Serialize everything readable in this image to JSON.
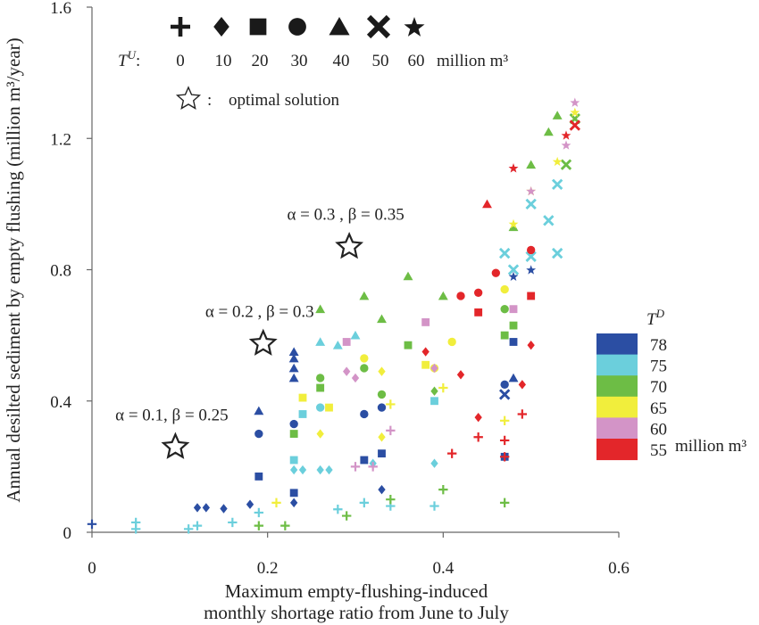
{
  "chart_data": {
    "type": "scatter",
    "title": "",
    "xlabel_line1": "Maximum empty-flushing-induced",
    "xlabel_line2": "monthly shortage ratio from June to July",
    "ylabel": "Annual desilted sediment by empty flushing (million m³/year)",
    "xlim": [
      0,
      0.6
    ],
    "ylim": [
      0,
      1.6
    ],
    "x_ticks": [
      {
        "value": 0,
        "label": "0"
      },
      {
        "value": 0.2,
        "label": "0.2"
      },
      {
        "value": 0.4,
        "label": "0.4"
      },
      {
        "value": 0.6,
        "label": "0.6"
      }
    ],
    "y_ticks": [
      {
        "value": 0,
        "label": "0"
      },
      {
        "value": 0.4,
        "label": "0.4"
      },
      {
        "value": 0.8,
        "label": "0.8"
      },
      {
        "value": 1.2,
        "label": "1.2"
      },
      {
        "value": 1.6,
        "label": "1.6"
      }
    ],
    "grid": false,
    "marker_legend": {
      "title": "T",
      "title_sup": "U",
      "colon": ":",
      "unit": "million m³",
      "items": [
        {
          "marker": "plus",
          "label": "0"
        },
        {
          "marker": "diamond",
          "label": "10"
        },
        {
          "marker": "square",
          "label": "20"
        },
        {
          "marker": "circle",
          "label": "30"
        },
        {
          "marker": "triangle",
          "label": "40"
        },
        {
          "marker": "x",
          "label": "50"
        },
        {
          "marker": "star",
          "label": "60"
        }
      ],
      "optimal_label": "optimal solution",
      "optimal_colon": ":"
    },
    "color_legend": {
      "title": "T",
      "title_sup": "D",
      "unit": "million m³",
      "items": [
        {
          "label": "78",
          "color": "#2b4ea3"
        },
        {
          "label": "75",
          "color": "#6bcfdc"
        },
        {
          "label": "70",
          "color": "#6dbd45"
        },
        {
          "label": "65",
          "color": "#f1ee3c"
        },
        {
          "label": "60",
          "color": "#d394c7"
        },
        {
          "label": "55",
          "color": "#e3262a"
        }
      ]
    },
    "optimal_solutions": [
      {
        "label": "α = 0.1, β = 0.25",
        "x": 0.095,
        "y": 0.26
      },
      {
        "label": "α = 0.2 , β = 0.3",
        "x": 0.195,
        "y": 0.575
      },
      {
        "label": "α = 0.3 , β = 0.35",
        "x": 0.293,
        "y": 0.87
      }
    ],
    "series": [
      {
        "td": 78,
        "color": "#2b4ea3",
        "points": [
          {
            "x": 0.0,
            "y": 0.025,
            "m": "plus"
          },
          {
            "x": 0.12,
            "y": 0.075,
            "m": "diamond"
          },
          {
            "x": 0.13,
            "y": 0.075,
            "m": "diamond"
          },
          {
            "x": 0.15,
            "y": 0.072,
            "m": "diamond"
          },
          {
            "x": 0.18,
            "y": 0.085,
            "m": "diamond"
          },
          {
            "x": 0.19,
            "y": 0.17,
            "m": "square"
          },
          {
            "x": 0.19,
            "y": 0.3,
            "m": "circle"
          },
          {
            "x": 0.19,
            "y": 0.37,
            "m": "triangle"
          },
          {
            "x": 0.23,
            "y": 0.47,
            "m": "triangle"
          },
          {
            "x": 0.23,
            "y": 0.5,
            "m": "triangle"
          },
          {
            "x": 0.23,
            "y": 0.53,
            "m": "triangle"
          },
          {
            "x": 0.23,
            "y": 0.55,
            "m": "triangle"
          },
          {
            "x": 0.23,
            "y": 0.33,
            "m": "circle"
          },
          {
            "x": 0.23,
            "y": 0.12,
            "m": "square"
          },
          {
            "x": 0.23,
            "y": 0.09,
            "m": "diamond"
          },
          {
            "x": 0.31,
            "y": 0.36,
            "m": "circle"
          },
          {
            "x": 0.31,
            "y": 0.22,
            "m": "square"
          },
          {
            "x": 0.33,
            "y": 0.24,
            "m": "square"
          },
          {
            "x": 0.33,
            "y": 0.38,
            "m": "circle"
          },
          {
            "x": 0.33,
            "y": 0.13,
            "m": "diamond"
          },
          {
            "x": 0.47,
            "y": 0.23,
            "m": "square"
          },
          {
            "x": 0.47,
            "y": 0.45,
            "m": "circle"
          },
          {
            "x": 0.47,
            "y": 0.42,
            "m": "x"
          },
          {
            "x": 0.48,
            "y": 0.47,
            "m": "triangle"
          },
          {
            "x": 0.48,
            "y": 0.58,
            "m": "square"
          },
          {
            "x": 0.48,
            "y": 0.78,
            "m": "star"
          },
          {
            "x": 0.5,
            "y": 0.8,
            "m": "star"
          }
        ]
      },
      {
        "td": 75,
        "color": "#6bcfdc",
        "points": [
          {
            "x": 0.05,
            "y": 0.01,
            "m": "plus"
          },
          {
            "x": 0.05,
            "y": 0.03,
            "m": "plus"
          },
          {
            "x": 0.11,
            "y": 0.01,
            "m": "plus"
          },
          {
            "x": 0.12,
            "y": 0.02,
            "m": "plus"
          },
          {
            "x": 0.16,
            "y": 0.03,
            "m": "plus"
          },
          {
            "x": 0.19,
            "y": 0.06,
            "m": "plus"
          },
          {
            "x": 0.23,
            "y": 0.22,
            "m": "square"
          },
          {
            "x": 0.23,
            "y": 0.19,
            "m": "diamond"
          },
          {
            "x": 0.24,
            "y": 0.36,
            "m": "square"
          },
          {
            "x": 0.24,
            "y": 0.19,
            "m": "diamond"
          },
          {
            "x": 0.26,
            "y": 0.19,
            "m": "diamond"
          },
          {
            "x": 0.26,
            "y": 0.38,
            "m": "circle"
          },
          {
            "x": 0.27,
            "y": 0.19,
            "m": "diamond"
          },
          {
            "x": 0.26,
            "y": 0.58,
            "m": "triangle"
          },
          {
            "x": 0.28,
            "y": 0.57,
            "m": "triangle"
          },
          {
            "x": 0.3,
            "y": 0.6,
            "m": "triangle"
          },
          {
            "x": 0.28,
            "y": 0.07,
            "m": "plus"
          },
          {
            "x": 0.31,
            "y": 0.09,
            "m": "plus"
          },
          {
            "x": 0.32,
            "y": 0.21,
            "m": "diamond"
          },
          {
            "x": 0.34,
            "y": 0.08,
            "m": "plus"
          },
          {
            "x": 0.39,
            "y": 0.08,
            "m": "plus"
          },
          {
            "x": 0.39,
            "y": 0.21,
            "m": "diamond"
          },
          {
            "x": 0.39,
            "y": 0.4,
            "m": "square"
          },
          {
            "x": 0.47,
            "y": 0.85,
            "m": "x"
          },
          {
            "x": 0.48,
            "y": 0.8,
            "m": "x"
          },
          {
            "x": 0.5,
            "y": 0.84,
            "m": "x"
          },
          {
            "x": 0.52,
            "y": 0.95,
            "m": "x"
          },
          {
            "x": 0.53,
            "y": 0.85,
            "m": "x"
          },
          {
            "x": 0.53,
            "y": 1.06,
            "m": "x"
          },
          {
            "x": 0.5,
            "y": 1.0,
            "m": "x"
          }
        ]
      },
      {
        "td": 70,
        "color": "#6dbd45",
        "points": [
          {
            "x": 0.19,
            "y": 0.02,
            "m": "plus"
          },
          {
            "x": 0.22,
            "y": 0.02,
            "m": "plus"
          },
          {
            "x": 0.23,
            "y": 0.3,
            "m": "square"
          },
          {
            "x": 0.26,
            "y": 0.47,
            "m": "circle"
          },
          {
            "x": 0.26,
            "y": 0.44,
            "m": "square"
          },
          {
            "x": 0.26,
            "y": 0.68,
            "m": "triangle"
          },
          {
            "x": 0.29,
            "y": 0.05,
            "m": "plus"
          },
          {
            "x": 0.31,
            "y": 0.72,
            "m": "triangle"
          },
          {
            "x": 0.31,
            "y": 0.5,
            "m": "circle"
          },
          {
            "x": 0.33,
            "y": 0.42,
            "m": "circle"
          },
          {
            "x": 0.33,
            "y": 0.65,
            "m": "triangle"
          },
          {
            "x": 0.34,
            "y": 0.1,
            "m": "plus"
          },
          {
            "x": 0.36,
            "y": 0.57,
            "m": "square"
          },
          {
            "x": 0.36,
            "y": 0.78,
            "m": "triangle"
          },
          {
            "x": 0.39,
            "y": 0.43,
            "m": "diamond"
          },
          {
            "x": 0.4,
            "y": 0.72,
            "m": "triangle"
          },
          {
            "x": 0.4,
            "y": 0.13,
            "m": "plus"
          },
          {
            "x": 0.47,
            "y": 0.09,
            "m": "plus"
          },
          {
            "x": 0.47,
            "y": 0.6,
            "m": "square"
          },
          {
            "x": 0.47,
            "y": 0.68,
            "m": "circle"
          },
          {
            "x": 0.48,
            "y": 0.63,
            "m": "square"
          },
          {
            "x": 0.48,
            "y": 0.93,
            "m": "triangle"
          },
          {
            "x": 0.5,
            "y": 1.12,
            "m": "triangle"
          },
          {
            "x": 0.52,
            "y": 1.22,
            "m": "triangle"
          },
          {
            "x": 0.53,
            "y": 1.27,
            "m": "triangle"
          },
          {
            "x": 0.54,
            "y": 1.12,
            "m": "x"
          },
          {
            "x": 0.55,
            "y": 1.26,
            "m": "x"
          }
        ]
      },
      {
        "td": 65,
        "color": "#f1ee3c",
        "points": [
          {
            "x": 0.21,
            "y": 0.09,
            "m": "plus"
          },
          {
            "x": 0.24,
            "y": 0.41,
            "m": "square"
          },
          {
            "x": 0.26,
            "y": 0.3,
            "m": "diamond"
          },
          {
            "x": 0.27,
            "y": 0.38,
            "m": "square"
          },
          {
            "x": 0.31,
            "y": 0.53,
            "m": "circle"
          },
          {
            "x": 0.33,
            "y": 0.29,
            "m": "diamond"
          },
          {
            "x": 0.33,
            "y": 0.49,
            "m": "diamond"
          },
          {
            "x": 0.34,
            "y": 0.39,
            "m": "plus"
          },
          {
            "x": 0.38,
            "y": 0.51,
            "m": "square"
          },
          {
            "x": 0.39,
            "y": 0.5,
            "m": "circle"
          },
          {
            "x": 0.4,
            "y": 0.44,
            "m": "plus"
          },
          {
            "x": 0.41,
            "y": 0.58,
            "m": "circle"
          },
          {
            "x": 0.47,
            "y": 0.34,
            "m": "plus"
          },
          {
            "x": 0.47,
            "y": 0.74,
            "m": "circle"
          },
          {
            "x": 0.48,
            "y": 0.94,
            "m": "star"
          },
          {
            "x": 0.5,
            "y": 1.04,
            "m": "star"
          },
          {
            "x": 0.53,
            "y": 1.13,
            "m": "star"
          },
          {
            "x": 0.55,
            "y": 1.28,
            "m": "star"
          }
        ]
      },
      {
        "td": 60,
        "color": "#d394c7",
        "points": [
          {
            "x": 0.29,
            "y": 0.58,
            "m": "square"
          },
          {
            "x": 0.29,
            "y": 0.49,
            "m": "diamond"
          },
          {
            "x": 0.3,
            "y": 0.47,
            "m": "diamond"
          },
          {
            "x": 0.3,
            "y": 0.2,
            "m": "plus"
          },
          {
            "x": 0.32,
            "y": 0.2,
            "m": "plus"
          },
          {
            "x": 0.34,
            "y": 0.31,
            "m": "plus"
          },
          {
            "x": 0.38,
            "y": 0.64,
            "m": "square"
          },
          {
            "x": 0.39,
            "y": 0.5,
            "m": "diamond"
          },
          {
            "x": 0.48,
            "y": 0.68,
            "m": "square"
          },
          {
            "x": 0.48,
            "y": 1.11,
            "m": "star"
          },
          {
            "x": 0.5,
            "y": 1.04,
            "m": "star"
          },
          {
            "x": 0.54,
            "y": 1.18,
            "m": "star"
          },
          {
            "x": 0.55,
            "y": 1.31,
            "m": "star"
          }
        ]
      },
      {
        "td": 55,
        "color": "#e3262a",
        "points": [
          {
            "x": 0.38,
            "y": 0.55,
            "m": "diamond"
          },
          {
            "x": 0.41,
            "y": 0.24,
            "m": "plus"
          },
          {
            "x": 0.42,
            "y": 0.48,
            "m": "diamond"
          },
          {
            "x": 0.42,
            "y": 0.72,
            "m": "circle"
          },
          {
            "x": 0.44,
            "y": 0.29,
            "m": "plus"
          },
          {
            "x": 0.44,
            "y": 0.35,
            "m": "diamond"
          },
          {
            "x": 0.44,
            "y": 0.73,
            "m": "circle"
          },
          {
            "x": 0.44,
            "y": 0.67,
            "m": "square"
          },
          {
            "x": 0.45,
            "y": 1.0,
            "m": "triangle"
          },
          {
            "x": 0.46,
            "y": 0.79,
            "m": "circle"
          },
          {
            "x": 0.47,
            "y": 0.28,
            "m": "plus"
          },
          {
            "x": 0.47,
            "y": 0.23,
            "m": "plus"
          },
          {
            "x": 0.49,
            "y": 0.45,
            "m": "diamond"
          },
          {
            "x": 0.49,
            "y": 0.36,
            "m": "plus"
          },
          {
            "x": 0.5,
            "y": 0.57,
            "m": "diamond"
          },
          {
            "x": 0.5,
            "y": 0.72,
            "m": "square"
          },
          {
            "x": 0.5,
            "y": 0.86,
            "m": "circle"
          },
          {
            "x": 0.48,
            "y": 1.11,
            "m": "star"
          },
          {
            "x": 0.54,
            "y": 1.21,
            "m": "star"
          },
          {
            "x": 0.55,
            "y": 1.24,
            "m": "x"
          }
        ]
      }
    ]
  }
}
